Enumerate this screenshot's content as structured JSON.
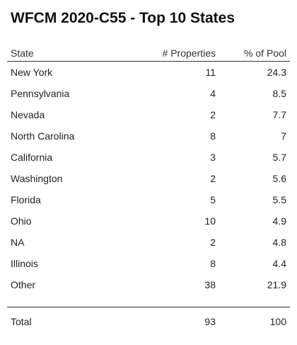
{
  "chart_data": {
    "type": "table",
    "title": "WFCM 2020-C55 - Top 10 States",
    "columns": [
      "State",
      "# Properties",
      "% of Pool"
    ],
    "rows": [
      {
        "state": "New York",
        "properties": "11",
        "pct": "24.3"
      },
      {
        "state": "Pennsylvania",
        "properties": "4",
        "pct": "8.5"
      },
      {
        "state": "Nevada",
        "properties": "2",
        "pct": "7.7"
      },
      {
        "state": "North Carolina",
        "properties": "8",
        "pct": "7"
      },
      {
        "state": "California",
        "properties": "3",
        "pct": "5.7"
      },
      {
        "state": "Washington",
        "properties": "2",
        "pct": "5.6"
      },
      {
        "state": "Florida",
        "properties": "5",
        "pct": "5.5"
      },
      {
        "state": "Ohio",
        "properties": "10",
        "pct": "4.9"
      },
      {
        "state": "NA",
        "properties": "2",
        "pct": "4.8"
      },
      {
        "state": "Illinois",
        "properties": "8",
        "pct": "4.4"
      },
      {
        "state": "Other",
        "properties": "38",
        "pct": "21.9"
      }
    ],
    "total": {
      "label": "Total",
      "properties": "93",
      "pct": "100"
    }
  }
}
